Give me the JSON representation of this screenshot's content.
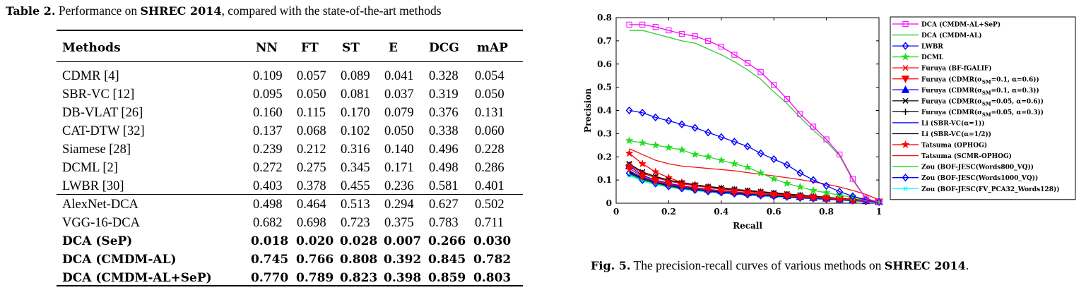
{
  "table": {
    "caption_label": "Table 2.",
    "caption_text_before": " Performance on ",
    "caption_dataset": "SHREC 2014",
    "caption_text_after": ", compared with the state-of-the-art methods",
    "headers": [
      "Methods",
      "NN",
      "FT",
      "ST",
      "E",
      "DCG",
      "mAP"
    ],
    "rows": [
      [
        "CDMR [4]",
        "0.109",
        "0.057",
        "0.089",
        "0.041",
        "0.328",
        "0.054"
      ],
      [
        "SBR-VC [12]",
        "0.095",
        "0.050",
        "0.081",
        "0.037",
        "0.319",
        "0.050"
      ],
      [
        "DB-VLAT [26]",
        "0.160",
        "0.115",
        "0.170",
        "0.079",
        "0.376",
        "0.131"
      ],
      [
        "CAT-DTW [32]",
        "0.137",
        "0.068",
        "0.102",
        "0.050",
        "0.338",
        "0.060"
      ],
      [
        "Siamese [28]",
        "0.239",
        "0.212",
        "0.316",
        "0.140",
        "0.496",
        "0.228"
      ],
      [
        "DCML [2]",
        "0.272",
        "0.275",
        "0.345",
        "0.171",
        "0.498",
        "0.286"
      ],
      [
        "LWBR [30]",
        "0.403",
        "0.378",
        "0.455",
        "0.236",
        "0.581",
        "0.401"
      ],
      [
        "AlexNet-DCA",
        "0.498",
        "0.464",
        "0.513",
        "0.294",
        "0.627",
        "0.502"
      ],
      [
        "VGG-16-DCA",
        "0.682",
        "0.698",
        "0.723",
        "0.375",
        "0.783",
        "0.711"
      ],
      [
        "DCA (SeP)",
        "0.018",
        "0.020",
        "0.028",
        "0.007",
        "0.266",
        "0.030"
      ],
      [
        "DCA (CMDM-AL)",
        "0.745",
        "0.766",
        "0.808",
        "0.392",
        "0.845",
        "0.782"
      ],
      [
        "DCA (CMDM-AL+SeP)",
        "0.770",
        "0.789",
        "0.823",
        "0.398",
        "0.859",
        "0.803"
      ]
    ]
  },
  "figure": {
    "caption_label": "Fig. 5.",
    "caption_text_before": " The precision-recall curves of various methods on ",
    "caption_dataset": "SHREC 2014",
    "caption_text_after": "."
  },
  "chart_data": {
    "type": "line",
    "title": "",
    "xlabel": "Recall",
    "ylabel": "Precision",
    "xlim": [
      0,
      1
    ],
    "ylim": [
      0,
      0.8
    ],
    "xticks": [
      "0",
      "0.2",
      "0.4",
      "0.6",
      "0.8",
      "1"
    ],
    "yticks": [
      "0",
      "0.1",
      "0.2",
      "0.3",
      "0.4",
      "0.5",
      "0.6",
      "0.7",
      "0.8"
    ],
    "grid": false,
    "legend_position": "right",
    "series": [
      {
        "name": "DCA (CMDM-AL+SeP)",
        "color": "#ff00ff",
        "marker": "square",
        "x": [
          0.05,
          0.1,
          0.15,
          0.2,
          0.25,
          0.3,
          0.35,
          0.4,
          0.45,
          0.5,
          0.55,
          0.6,
          0.65,
          0.7,
          0.75,
          0.8,
          0.85,
          0.9,
          0.95,
          1.0
        ],
        "y": [
          0.77,
          0.77,
          0.76,
          0.745,
          0.73,
          0.72,
          0.7,
          0.675,
          0.64,
          0.605,
          0.565,
          0.51,
          0.45,
          0.385,
          0.33,
          0.275,
          0.21,
          0.105,
          0.02,
          0.005
        ]
      },
      {
        "name": "DCA (CMDM-AL)",
        "color": "#33cc33",
        "marker": "none",
        "x": [
          0.05,
          0.1,
          0.15,
          0.2,
          0.25,
          0.3,
          0.35,
          0.4,
          0.45,
          0.5,
          0.55,
          0.6,
          0.65,
          0.7,
          0.75,
          0.8,
          0.85,
          0.9,
          0.95,
          1.0
        ],
        "y": [
          0.745,
          0.745,
          0.73,
          0.715,
          0.7,
          0.69,
          0.665,
          0.64,
          0.61,
          0.575,
          0.535,
          0.48,
          0.43,
          0.37,
          0.315,
          0.265,
          0.205,
          0.1,
          0.02,
          0.005
        ]
      },
      {
        "name": "LWBR",
        "color": "#0000ff",
        "marker": "diamond",
        "x": [
          0.05,
          0.1,
          0.15,
          0.2,
          0.25,
          0.3,
          0.35,
          0.4,
          0.45,
          0.5,
          0.55,
          0.6,
          0.65,
          0.7,
          0.75,
          0.8,
          0.85,
          0.9,
          0.95,
          1.0
        ],
        "y": [
          0.4,
          0.39,
          0.37,
          0.355,
          0.34,
          0.325,
          0.305,
          0.285,
          0.265,
          0.245,
          0.215,
          0.19,
          0.165,
          0.13,
          0.1,
          0.075,
          0.05,
          0.03,
          0.015,
          0.005
        ]
      },
      {
        "name": "DCML",
        "color": "#22dd22",
        "marker": "star",
        "x": [
          0.05,
          0.1,
          0.15,
          0.2,
          0.25,
          0.3,
          0.35,
          0.4,
          0.45,
          0.5,
          0.55,
          0.6,
          0.65,
          0.7,
          0.75,
          0.8,
          0.85,
          0.9,
          0.95,
          1.0
        ],
        "y": [
          0.27,
          0.26,
          0.25,
          0.24,
          0.23,
          0.21,
          0.2,
          0.185,
          0.17,
          0.155,
          0.13,
          0.105,
          0.085,
          0.07,
          0.055,
          0.045,
          0.035,
          0.025,
          0.015,
          0.005
        ]
      },
      {
        "name": "Furuya (BF-fGALIF)",
        "color": "#ff0000",
        "marker": "x",
        "x": [
          0.05,
          0.1,
          0.15,
          0.2,
          0.25,
          0.3,
          0.35,
          0.4,
          0.45,
          0.5,
          0.55,
          0.6,
          0.65,
          0.7,
          0.75,
          0.8,
          0.85,
          0.9,
          0.95,
          1.0
        ],
        "y": [
          0.165,
          0.13,
          0.11,
          0.095,
          0.085,
          0.075,
          0.068,
          0.06,
          0.055,
          0.05,
          0.045,
          0.04,
          0.035,
          0.03,
          0.027,
          0.023,
          0.019,
          0.015,
          0.011,
          0.007
        ]
      },
      {
        "name": "Furuya (CDMR(σSM=0.1, α=0.6))",
        "legend_pre": "Furuya (CDMR(σ",
        "legend_sub": "SM",
        "legend_post": "=0.1, α=0.6))",
        "color": "#ff0000",
        "marker": "tri_down",
        "x": [
          0.05,
          0.1,
          0.15,
          0.2,
          0.25,
          0.3,
          0.35,
          0.4,
          0.45,
          0.5,
          0.55,
          0.6,
          0.65,
          0.7,
          0.75,
          0.8,
          0.85,
          0.9,
          0.95,
          1.0
        ],
        "y": [
          0.15,
          0.115,
          0.095,
          0.082,
          0.072,
          0.064,
          0.058,
          0.052,
          0.047,
          0.043,
          0.039,
          0.035,
          0.031,
          0.027,
          0.024,
          0.02,
          0.017,
          0.013,
          0.01,
          0.006
        ]
      },
      {
        "name": "Furuya (CDMR(σSM=0.1, α=0.3))",
        "legend_pre": "Furuya (CDMR(σ",
        "legend_sub": "SM",
        "legend_post": "=0.1, α=0.3))",
        "color": "#0000ff",
        "marker": "tri_up",
        "x": [
          0.05,
          0.1,
          0.15,
          0.2,
          0.25,
          0.3,
          0.35,
          0.4,
          0.45,
          0.5,
          0.55,
          0.6,
          0.65,
          0.7,
          0.75,
          0.8,
          0.85,
          0.9,
          0.95,
          1.0
        ],
        "y": [
          0.16,
          0.12,
          0.1,
          0.086,
          0.075,
          0.067,
          0.06,
          0.054,
          0.049,
          0.044,
          0.04,
          0.036,
          0.032,
          0.028,
          0.024,
          0.021,
          0.017,
          0.014,
          0.01,
          0.006
        ]
      },
      {
        "name": "Furuya (CDMR(σSM=0.05, α=0.6))",
        "legend_pre": "Furuya (CDMR(σ",
        "legend_sub": "SM",
        "legend_post": "=0.05,  α=0.6))",
        "color": "#000000",
        "marker": "x",
        "x": [
          0.05,
          0.1,
          0.15,
          0.2,
          0.25,
          0.3,
          0.35,
          0.4,
          0.45,
          0.5,
          0.55,
          0.6,
          0.65,
          0.7,
          0.75,
          0.8,
          0.85,
          0.9,
          0.95,
          1.0
        ],
        "y": [
          0.17,
          0.135,
          0.115,
          0.1,
          0.088,
          0.079,
          0.072,
          0.066,
          0.06,
          0.055,
          0.05,
          0.045,
          0.04,
          0.035,
          0.03,
          0.026,
          0.021,
          0.017,
          0.012,
          0.007
        ]
      },
      {
        "name": "Furuya (CDMR(σSM=0.05, α=0.3))",
        "legend_pre": "Furuya (CDMR(σ",
        "legend_sub": "SM",
        "legend_post": "=0.05,  α=0.3))",
        "color": "#000000",
        "marker": "plus",
        "x": [
          0.05,
          0.1,
          0.15,
          0.2,
          0.25,
          0.3,
          0.35,
          0.4,
          0.45,
          0.5,
          0.55,
          0.6,
          0.65,
          0.7,
          0.75,
          0.8,
          0.85,
          0.9,
          0.95,
          1.0
        ],
        "y": [
          0.165,
          0.13,
          0.11,
          0.096,
          0.085,
          0.076,
          0.069,
          0.063,
          0.058,
          0.053,
          0.048,
          0.043,
          0.038,
          0.034,
          0.029,
          0.025,
          0.02,
          0.016,
          0.012,
          0.007
        ]
      },
      {
        "name": "Li (SBR-VC(α=1))",
        "color": "#0000ff",
        "marker": "none",
        "x": [
          0.05,
          0.1,
          0.15,
          0.2,
          0.25,
          0.3,
          0.35,
          0.4,
          0.45,
          0.5,
          0.55,
          0.6,
          0.65,
          0.7,
          0.75,
          0.8,
          0.85,
          0.9,
          0.95,
          1.0
        ],
        "y": [
          0.14,
          0.11,
          0.092,
          0.08,
          0.07,
          0.062,
          0.056,
          0.05,
          0.045,
          0.041,
          0.037,
          0.033,
          0.03,
          0.026,
          0.023,
          0.019,
          0.016,
          0.012,
          0.009,
          0.005
        ]
      },
      {
        "name": "Li (SBR-VC(α=1/2))",
        "color": "#000000",
        "marker": "none",
        "x": [
          0.05,
          0.1,
          0.15,
          0.2,
          0.25,
          0.3,
          0.35,
          0.4,
          0.45,
          0.5,
          0.55,
          0.6,
          0.65,
          0.7,
          0.75,
          0.8,
          0.85,
          0.9,
          0.95,
          1.0
        ],
        "y": [
          0.135,
          0.105,
          0.088,
          0.076,
          0.067,
          0.06,
          0.054,
          0.048,
          0.043,
          0.039,
          0.035,
          0.032,
          0.028,
          0.025,
          0.022,
          0.018,
          0.015,
          0.012,
          0.008,
          0.005
        ]
      },
      {
        "name": "Tatsuma (OPHOG)",
        "color": "#ff0000",
        "marker": "star",
        "x": [
          0.05,
          0.1,
          0.15,
          0.2,
          0.25,
          0.3,
          0.35,
          0.4,
          0.45,
          0.5,
          0.55,
          0.6,
          0.65,
          0.7,
          0.75,
          0.8,
          0.85,
          0.9,
          0.95,
          1.0
        ],
        "y": [
          0.215,
          0.17,
          0.135,
          0.11,
          0.09,
          0.08,
          0.07,
          0.064,
          0.058,
          0.052,
          0.047,
          0.042,
          0.037,
          0.033,
          0.028,
          0.024,
          0.02,
          0.016,
          0.012,
          0.008
        ]
      },
      {
        "name": "Tatsuma (SCMR-OPHOG)",
        "color": "#ee1111",
        "marker": "none",
        "x": [
          0.05,
          0.1,
          0.15,
          0.2,
          0.25,
          0.3,
          0.35,
          0.4,
          0.45,
          0.5,
          0.55,
          0.6,
          0.65,
          0.7,
          0.75,
          0.8,
          0.85,
          0.9,
          0.95,
          1.0
        ],
        "y": [
          0.235,
          0.21,
          0.185,
          0.17,
          0.16,
          0.155,
          0.15,
          0.145,
          0.14,
          0.132,
          0.125,
          0.118,
          0.11,
          0.102,
          0.092,
          0.082,
          0.07,
          0.055,
          0.038,
          0.015
        ]
      },
      {
        "name": "Zou (BOF-JESC(Words800_VQ))",
        "color": "#00cc00",
        "marker": "none",
        "x": [
          0.05,
          0.1,
          0.15,
          0.2,
          0.25,
          0.3,
          0.35,
          0.4,
          0.45,
          0.5,
          0.55,
          0.6,
          0.65,
          0.7,
          0.75,
          0.8,
          0.85,
          0.9,
          0.95,
          1.0
        ],
        "y": [
          0.125,
          0.1,
          0.085,
          0.074,
          0.066,
          0.059,
          0.053,
          0.048,
          0.043,
          0.039,
          0.035,
          0.032,
          0.028,
          0.025,
          0.022,
          0.018,
          0.015,
          0.012,
          0.008,
          0.005
        ]
      },
      {
        "name": "Zou (BOF-JESC(Words1000_VQ))",
        "color": "#0000ff",
        "marker": "diamond",
        "x": [
          0.05,
          0.1,
          0.15,
          0.2,
          0.25,
          0.3,
          0.35,
          0.4,
          0.45,
          0.5,
          0.55,
          0.6,
          0.65,
          0.7,
          0.75,
          0.8,
          0.85,
          0.9,
          0.95,
          1.0
        ],
        "y": [
          0.13,
          0.1,
          0.085,
          0.073,
          0.064,
          0.057,
          0.051,
          0.046,
          0.041,
          0.037,
          0.033,
          0.03,
          0.027,
          0.023,
          0.02,
          0.017,
          0.014,
          0.011,
          0.008,
          0.005
        ]
      },
      {
        "name": "Zou (BOF-JESC(FV_PCA32_Words128))",
        "color": "#00ffff",
        "marker": "asterisk",
        "x": [
          0.05,
          0.1,
          0.15,
          0.2,
          0.25,
          0.3,
          0.35,
          0.4,
          0.45,
          0.5,
          0.55,
          0.6,
          0.65,
          0.7,
          0.75,
          0.8,
          0.85,
          0.9,
          0.95,
          1.0
        ],
        "y": [
          0.12,
          0.095,
          0.08,
          0.069,
          0.06,
          0.054,
          0.048,
          0.043,
          0.039,
          0.035,
          0.031,
          0.028,
          0.025,
          0.022,
          0.019,
          0.016,
          0.013,
          0.01,
          0.007,
          0.004
        ]
      }
    ]
  }
}
